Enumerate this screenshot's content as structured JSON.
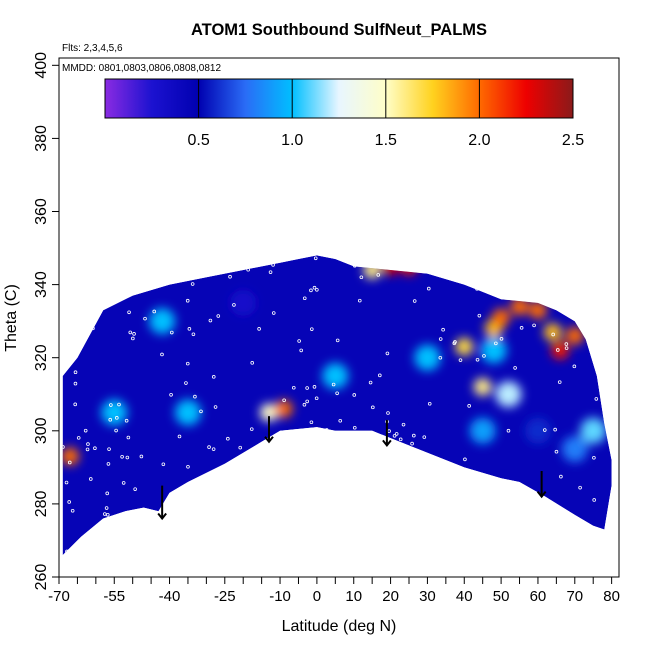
{
  "chart_data": {
    "type": "heatmap",
    "title": "ATOM1 Southbound SulfNeut_PALMS",
    "flights_note": "Flts: 2,3,4,5,6",
    "dates_note": "MMDD: 0801,0803,0806,0808,0812",
    "xlabel": "Latitude (deg N)",
    "ylabel": "Theta (C)",
    "xlim": [
      -70,
      82
    ],
    "ylim": [
      260,
      402
    ],
    "x_ticks": [
      -70,
      -55,
      -40,
      -25,
      -10,
      0,
      10,
      20,
      30,
      40,
      50,
      60,
      70,
      80
    ],
    "x_tick_labels": [
      "-70",
      "-55",
      "-40",
      "-25",
      "-10",
      "0",
      "10",
      "20",
      "30",
      "40",
      "50",
      "60",
      "70",
      "80"
    ],
    "x_minor_ticks": [
      -65,
      -60,
      -50,
      -45,
      -35,
      -30,
      -20,
      -15,
      -5,
      5,
      15,
      25,
      35,
      45,
      55,
      65,
      75
    ],
    "y_ticks": [
      260,
      280,
      300,
      320,
      340,
      360,
      380,
      400
    ],
    "y_tick_labels": [
      "260",
      "280",
      "300",
      "320",
      "340",
      "360",
      "380",
      "400"
    ],
    "colorbar": {
      "range": [
        0,
        2.5
      ],
      "ticks": [
        0.5,
        1.0,
        1.5,
        2.0,
        2.5
      ],
      "tick_labels": [
        "0.5",
        "1.0",
        "1.5",
        "2.0",
        "2.5"
      ],
      "stops": [
        {
          "v": 0.0,
          "color": "#8a2be2"
        },
        {
          "v": 0.25,
          "color": "#1c12d0"
        },
        {
          "v": 0.5,
          "color": "#0000b0"
        },
        {
          "v": 0.75,
          "color": "#2a6cf6"
        },
        {
          "v": 1.0,
          "color": "#00bfff"
        },
        {
          "v": 1.25,
          "color": "#e8f6ff"
        },
        {
          "v": 1.5,
          "color": "#fffec8"
        },
        {
          "v": 1.75,
          "color": "#ffd21f"
        },
        {
          "v": 2.0,
          "color": "#ff6a00"
        },
        {
          "v": 2.25,
          "color": "#ee0000"
        },
        {
          "v": 2.5,
          "color": "#8b1a1a"
        }
      ]
    },
    "coverage": {
      "bottom": [
        [
          -69,
          266
        ],
        [
          -64,
          271
        ],
        [
          -58,
          276
        ],
        [
          -52,
          278
        ],
        [
          -47,
          279
        ],
        [
          -43,
          278
        ],
        [
          -40,
          283
        ],
        [
          -35,
          286
        ],
        [
          -25,
          291
        ],
        [
          -15,
          297
        ],
        [
          -10,
          300
        ],
        [
          0,
          301
        ],
        [
          5,
          300
        ],
        [
          15,
          300
        ],
        [
          20,
          298
        ],
        [
          30,
          294
        ],
        [
          40,
          290
        ],
        [
          50,
          287
        ],
        [
          55,
          286
        ],
        [
          62,
          282
        ],
        [
          70,
          277
        ],
        [
          75,
          274
        ],
        [
          78,
          273
        ]
      ],
      "top": [
        [
          -69,
          315
        ],
        [
          -65,
          320
        ],
        [
          -58,
          333
        ],
        [
          -50,
          337
        ],
        [
          -40,
          340
        ],
        [
          -30,
          342
        ],
        [
          -20,
          344
        ],
        [
          -10,
          346
        ],
        [
          -5,
          347
        ],
        [
          0,
          348
        ],
        [
          5,
          347
        ],
        [
          10,
          345
        ],
        [
          20,
          344
        ],
        [
          30,
          343
        ],
        [
          40,
          340
        ],
        [
          45,
          338
        ],
        [
          50,
          336
        ],
        [
          60,
          335
        ],
        [
          65,
          333
        ],
        [
          70,
          330
        ],
        [
          73,
          325
        ],
        [
          76,
          315
        ],
        [
          78,
          302
        ],
        [
          80,
          292
        ],
        [
          80,
          285
        ],
        [
          78,
          273
        ]
      ]
    },
    "hotspots": [
      {
        "x": -67,
        "y": 293,
        "value": 2.0
      },
      {
        "x": -13,
        "y": 305,
        "value": 1.5
      },
      {
        "x": -9,
        "y": 306,
        "value": 2.0
      },
      {
        "x": 15,
        "y": 344,
        "value": 1.6
      },
      {
        "x": 20,
        "y": 345,
        "value": 2.3
      },
      {
        "x": 25,
        "y": 345,
        "value": 2.2
      },
      {
        "x": 40,
        "y": 323,
        "value": 1.7
      },
      {
        "x": 45,
        "y": 312,
        "value": 1.6
      },
      {
        "x": 48,
        "y": 328,
        "value": 1.8
      },
      {
        "x": 50,
        "y": 331,
        "value": 2.0
      },
      {
        "x": 55,
        "y": 334,
        "value": 2.0
      },
      {
        "x": 60,
        "y": 333,
        "value": 2.0
      },
      {
        "x": 64,
        "y": 327,
        "value": 1.8
      },
      {
        "x": 66,
        "y": 322,
        "value": 2.2
      },
      {
        "x": 70,
        "y": 326,
        "value": 2.0
      },
      {
        "x": 52,
        "y": 310,
        "value": 1.2
      },
      {
        "x": 75,
        "y": 300,
        "value": 1.1
      },
      {
        "x": 48,
        "y": 322,
        "value": 1.0
      },
      {
        "x": -55,
        "y": 305,
        "value": 1.0
      },
      {
        "x": -35,
        "y": 305,
        "value": 1.0
      },
      {
        "x": 5,
        "y": 315,
        "value": 1.0
      },
      {
        "x": 30,
        "y": 320,
        "value": 1.0
      },
      {
        "x": 45,
        "y": 300,
        "value": 0.9
      },
      {
        "x": -42,
        "y": 330,
        "value": 1.0
      },
      {
        "x": 60,
        "y": 300,
        "value": 0.6
      },
      {
        "x": 70,
        "y": 295,
        "value": 0.8
      },
      {
        "x": -20,
        "y": 335,
        "value": 0.3
      }
    ],
    "arrows": [
      {
        "x": -42,
        "y_top": 285,
        "y_bottom": 276
      },
      {
        "x": -13,
        "y_top": 304,
        "y_bottom": 297
      },
      {
        "x": 19,
        "y_top": 303,
        "y_bottom": 296
      },
      {
        "x": 61,
        "y_top": 289,
        "y_bottom": 282
      }
    ]
  }
}
